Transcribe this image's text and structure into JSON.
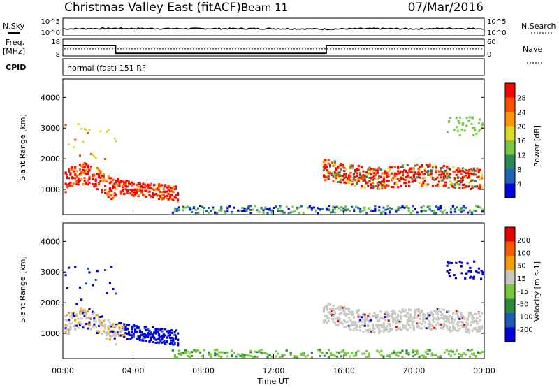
{
  "header": {
    "station": "Christmas Valley East (fitACF)",
    "beam": "Beam 11",
    "date": "07/Mar/2016"
  },
  "side_labels": {
    "nsky": "N.Sky",
    "nsearch": "N.Search",
    "freq": "Freq.",
    "freq_unit": "[MHz]",
    "nave": "Nave",
    "cpid": "CPID"
  },
  "cpid_text": "normal (fast) 151 RF",
  "chart_data": [
    {
      "type": "line",
      "name": "noise",
      "ytick_left": [
        "10^5",
        "10^0"
      ],
      "ytick_right": [
        "10^5",
        "10^0"
      ],
      "x": [
        0,
        3,
        6,
        9,
        12,
        15,
        16,
        18,
        20,
        22,
        24
      ],
      "y": [
        1.8,
        2.0,
        1.9,
        1.9,
        1.9,
        1.7,
        1.8,
        1.9,
        1.8,
        2.0,
        1.9
      ]
    },
    {
      "type": "line",
      "name": "frequency",
      "ytick_left": [
        "18",
        "8"
      ],
      "ytick_right": [
        "60",
        "0"
      ],
      "freq_steps": [
        {
          "x0": 0,
          "x1": 3.0,
          "freq": 14.2
        },
        {
          "x0": 3.0,
          "x1": 15.0,
          "freq": 9.6
        },
        {
          "x0": 15.0,
          "x1": 24,
          "freq": 14.2
        }
      ],
      "nave_level": 12.2
    },
    {
      "type": "heatmap",
      "name": "power",
      "ylabel": "Slant Range [km]",
      "yticks": [
        1000,
        2000,
        3000,
        4000
      ],
      "ylim": [
        180,
        4600
      ],
      "xlim": [
        0,
        24
      ],
      "colorbar_label": "Power [dB]",
      "colorbar_ticks": [
        "28",
        "24",
        "20",
        "16",
        "12",
        "8",
        "4"
      ],
      "colors": [
        "#0000e6",
        "#1e64b4",
        "#2a8a5a",
        "#7ac846",
        "#dcdc28",
        "#ff9600",
        "#ff5000",
        "#ff0000"
      ]
    },
    {
      "type": "heatmap",
      "name": "velocity",
      "ylabel": "Slant Range [km]",
      "yticks": [
        1000,
        2000,
        3000,
        4000
      ],
      "ylim": [
        180,
        4600
      ],
      "xlim": [
        0,
        24
      ],
      "xlabel": "Time UT",
      "xticks": [
        "00:00",
        "04:00",
        "08:00",
        "12:00",
        "16:00",
        "20:00",
        "00:00"
      ],
      "colorbar_label": "Velocity [m s-1]",
      "colorbar_ticks": [
        "200",
        "100",
        "50",
        "15",
        "-15",
        "-50",
        "-100",
        "-200"
      ],
      "colors": [
        "#0000dc",
        "#1e5ab4",
        "#2a8c3c",
        "#78c83c",
        "#c8c8c0",
        "#f0a000",
        "#ff5a00",
        "#e60000"
      ]
    }
  ]
}
